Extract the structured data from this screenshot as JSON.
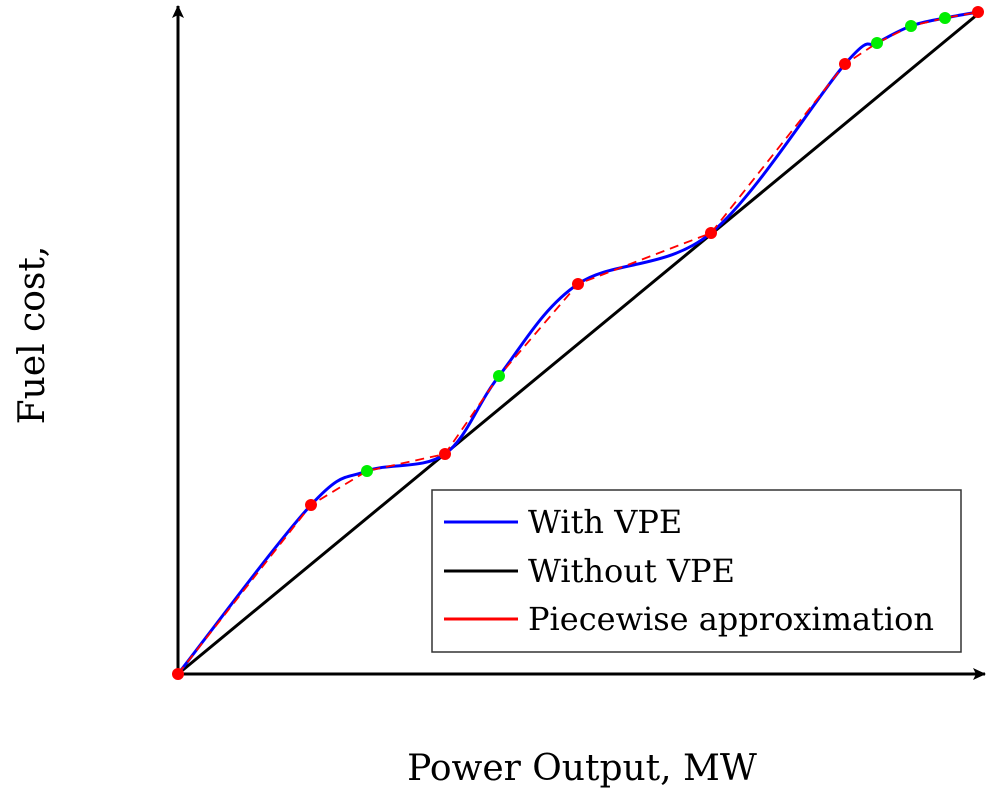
{
  "chart_data": {
    "type": "line",
    "title": "",
    "xlabel": "Power Output, MW",
    "ylabel": "Fuel cost,",
    "xlim": [
      0,
      8
    ],
    "ylim": [
      0,
      6.68
    ],
    "grid": false,
    "legend": {
      "position": "bottom-right",
      "entries": [
        "With VPE",
        "Without VPE",
        "Piecewise approximation"
      ]
    },
    "colors": {
      "with_vpe": "#0000ff",
      "without_vpe": "#000000",
      "piecewise": "#ff0000",
      "breakpoint": "#ff0000",
      "midpoint": "#00ee00"
    },
    "series": [
      {
        "name": "With VPE",
        "style": "solid",
        "color": "#0000ff"
      },
      {
        "name": "Without VPE",
        "style": "solid",
        "color": "#000000",
        "x": [
          0,
          8
        ],
        "y": [
          0,
          6.6
        ]
      },
      {
        "name": "Piecewise approximation",
        "style": "dashed",
        "color": "#ff0000",
        "x": [
          0,
          1.33,
          1.89,
          2.67,
          3.21,
          4.0,
          5.33,
          6.67,
          6.99,
          7.33,
          7.67,
          8.0
        ],
        "y": [
          0,
          1.69,
          2.03,
          2.2,
          2.98,
          3.9,
          4.41,
          6.1,
          6.31,
          6.48,
          6.56,
          6.62
        ]
      }
    ],
    "red_points": {
      "x": [
        0,
        1.33,
        2.67,
        4.0,
        5.33,
        6.67,
        8.0
      ],
      "y": [
        0,
        1.69,
        2.2,
        3.9,
        4.41,
        6.1,
        6.62
      ]
    },
    "green_points": {
      "x": [
        1.89,
        3.21,
        6.99,
        7.33,
        7.67
      ],
      "y": [
        2.03,
        2.98,
        6.31,
        6.48,
        6.56
      ]
    }
  }
}
